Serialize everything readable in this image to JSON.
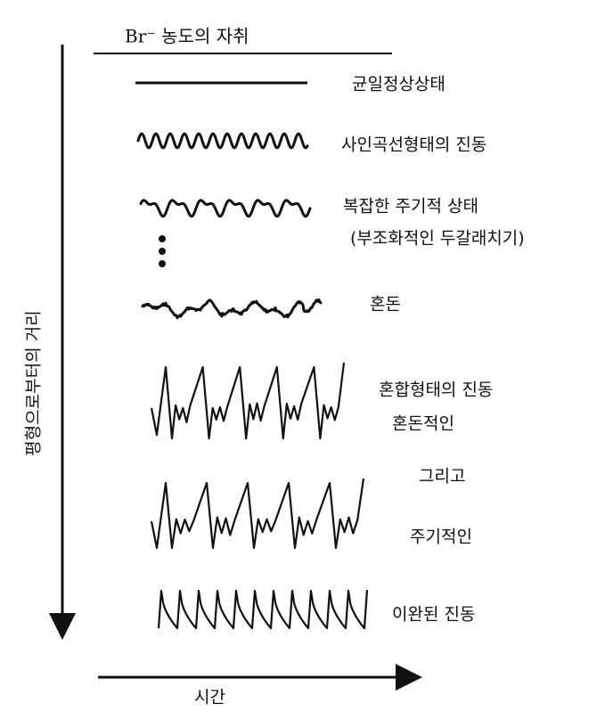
{
  "title": "Br⁻ 농도의 자취",
  "axes": {
    "y_label": "평형으로부터의 거리",
    "x_label": "시간"
  },
  "states": [
    {
      "lines": [
        "균일정상상태"
      ]
    },
    {
      "lines": [
        "사인곡선형태의 진동"
      ]
    },
    {
      "lines": [
        "복잡한 주기적 상태",
        "(부조화적인 두갈래치기)"
      ]
    },
    {
      "lines": [
        "혼돈"
      ]
    },
    {
      "lines": [
        "혼합형태의 진동",
        "혼돈적인",
        "그리고",
        "주기적인"
      ]
    },
    {
      "lines": [
        "이완된 진동"
      ]
    }
  ]
}
